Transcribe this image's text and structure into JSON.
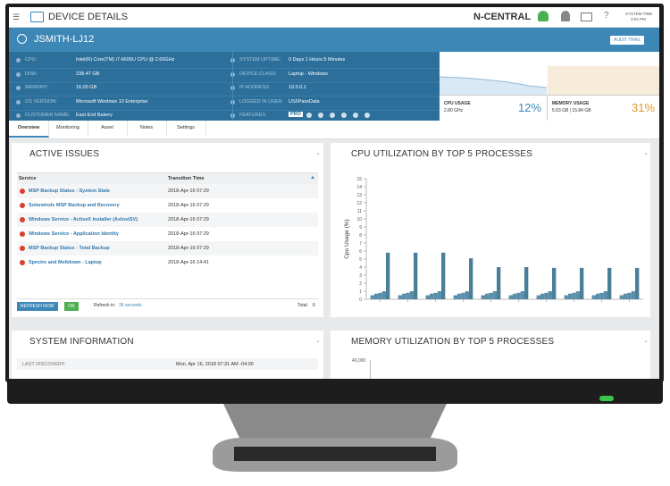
{
  "header": {
    "title": "DEVICE DETAILS",
    "brand": "N-CENTRAL",
    "system_time_label": "SYSTEM TIME",
    "system_time": "3:04 PM"
  },
  "device": {
    "name": "JSMITH-LJ12",
    "audit_button": "AUDIT TRAIL",
    "info_left": [
      {
        "label": "CPU:",
        "value": "Intel(R) Core(TM) i7-6600U CPU @ 2.60GHz"
      },
      {
        "label": "DISK:",
        "value": "238.47 GB"
      },
      {
        "label": "MEMORY:",
        "value": "16.00 GB"
      },
      {
        "label": "OS VERSION:",
        "value": "Microsoft Windows 10 Enterprise"
      },
      {
        "label": "CUSTOMER NAME:",
        "value": "East End Bakery"
      }
    ],
    "info_right": [
      {
        "label": "SYSTEM UPTIME:",
        "value": "0 Days 1 Hours 5 Minutes"
      },
      {
        "label": "DEVICE CLASS:",
        "value": "Laptop - Windows"
      },
      {
        "label": "IP ADDRESS:",
        "value": "10.0.0.1"
      },
      {
        "label": "LOGGED IN USER:",
        "value": "USI\\PassData"
      },
      {
        "label": "FEATURES:",
        "value": "PRO"
      }
    ],
    "cpu_gauge": {
      "label": "CPU USAGE",
      "detail": "2.80 GHz",
      "percent": "12%"
    },
    "memory_gauge": {
      "label": "MEMORY USAGE",
      "detail": "5.63 GB | 15.84 GB",
      "percent": "31%"
    }
  },
  "tabs": [
    "Overview",
    "Monitoring",
    "Asset",
    "Notes",
    "Settings"
  ],
  "active_issues": {
    "title": "ACTIVE ISSUES",
    "columns": [
      "Service",
      "Transition Time"
    ],
    "rows": [
      [
        "MSP Backup Status - System State",
        "2018-Apr-16 07:29"
      ],
      [
        "Solarwinds MSP Backup and Recovery",
        "2018-Apr-16 07:29"
      ],
      [
        "Windows Service - ActiveX Installer (AxInstSV)",
        "2018-Apr-16 07:29"
      ],
      [
        "Windows Service - Application Identity",
        "2018-Apr-16 07:29"
      ],
      [
        "MSP Backup Status - Total Backup",
        "2018-Apr-16 07:29"
      ],
      [
        "Spectre and Meltdown - Laptop",
        "2018-Apr-16 14:41"
      ]
    ],
    "refresh_button": "REFRESH NOW",
    "toggle": "ON",
    "refresh_label": "Refresh in:",
    "refresh_time": "36 seconds",
    "total_label": "Total:",
    "total": "6"
  },
  "chart_data": {
    "type": "bar",
    "title": "CPU UTILIZATION BY TOP 5 PROCESSES",
    "y_label": "Cpu Usage (%)",
    "categories": [
      null,
      null,
      null,
      null,
      null,
      null,
      null,
      null,
      null,
      null
    ],
    "series": [
      {
        "color": "#5b8ea8",
        "values": [
          0.5,
          0.5,
          0.5,
          0.5,
          0.5,
          0.5,
          0.5,
          0.5,
          0.5,
          0.5
        ]
      },
      {
        "color": "#5b8ea8",
        "values": [
          0.7,
          0.7,
          0.7,
          0.7,
          0.7,
          0.7,
          0.7,
          0.7,
          0.7,
          0.7
        ]
      },
      {
        "color": "#5b8ea8",
        "values": [
          0.8,
          0.8,
          0.8,
          0.8,
          0.8,
          0.8,
          0.8,
          0.8,
          0.8,
          0.8
        ]
      },
      {
        "color": "#5b8ea8",
        "values": [
          1,
          1,
          1,
          1,
          1,
          1,
          1,
          1,
          1,
          1
        ]
      },
      {
        "color": "#4a7f98",
        "values": [
          5.8,
          5.8,
          5.8,
          5.1,
          4,
          4,
          3.9,
          3.9,
          3.9,
          3.9
        ]
      }
    ],
    "ylim": [
      0,
      15
    ],
    "yticks": [
      0,
      1,
      2,
      3,
      4,
      5,
      6,
      7,
      8,
      9,
      10,
      11,
      12,
      13,
      14,
      15
    ]
  },
  "system_info": {
    "title": "SYSTEM INFORMATION",
    "rows": [
      [
        "LAST DISCOVERY:",
        "Mon, Apr 16, 2018 07:31 AM -04:00"
      ]
    ]
  },
  "memory_panel": {
    "title": "MEMORY UTILIZATION BY TOP 5 PROCESSES",
    "tick_label": "40,000"
  }
}
